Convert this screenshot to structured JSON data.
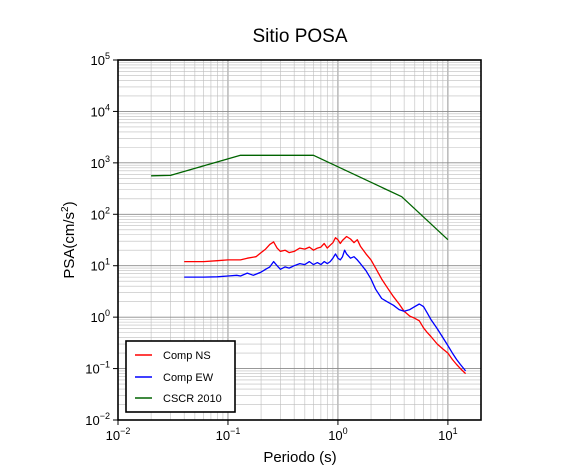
{
  "chart_data": {
    "type": "line",
    "title": "Sitio POSA",
    "xlabel": "Periodo (s)",
    "ylabel": "PSA(cm/s2)",
    "ylabel_parts": {
      "base": "PSA(cm/s",
      "sup": "2",
      "close": ")"
    },
    "xscale": "log",
    "yscale": "log",
    "xlim": [
      0.01,
      20
    ],
    "ylim": [
      0.01,
      100000
    ],
    "x_ticks": [
      {
        "value": 0.01,
        "base": "10",
        "exp": "−2"
      },
      {
        "value": 0.1,
        "base": "10",
        "exp": "−1"
      },
      {
        "value": 1,
        "base": "10",
        "exp": "0"
      },
      {
        "value": 10,
        "base": "10",
        "exp": "1"
      }
    ],
    "y_ticks": [
      {
        "value": 0.01,
        "base": "10",
        "exp": "−2"
      },
      {
        "value": 0.1,
        "base": "10",
        "exp": "−1"
      },
      {
        "value": 1,
        "base": "10",
        "exp": "0"
      },
      {
        "value": 10,
        "base": "10",
        "exp": "1"
      },
      {
        "value": 100,
        "base": "10",
        "exp": "2"
      },
      {
        "value": 1000,
        "base": "10",
        "exp": "3"
      },
      {
        "value": 10000,
        "base": "10",
        "exp": "4"
      },
      {
        "value": 100000,
        "base": "10",
        "exp": "5"
      }
    ],
    "grid": true,
    "legend_position": "bottom-left",
    "series": [
      {
        "name": "Comp NS",
        "color": "#ff0000",
        "points": [
          [
            0.04,
            12
          ],
          [
            0.06,
            12
          ],
          [
            0.08,
            12.5
          ],
          [
            0.1,
            13
          ],
          [
            0.13,
            13
          ],
          [
            0.15,
            14
          ],
          [
            0.18,
            15
          ],
          [
            0.2,
            18
          ],
          [
            0.22,
            21
          ],
          [
            0.24,
            26
          ],
          [
            0.26,
            29
          ],
          [
            0.28,
            22
          ],
          [
            0.3,
            19
          ],
          [
            0.33,
            20
          ],
          [
            0.36,
            18
          ],
          [
            0.4,
            19
          ],
          [
            0.45,
            22
          ],
          [
            0.5,
            21
          ],
          [
            0.55,
            23
          ],
          [
            0.6,
            20
          ],
          [
            0.65,
            22
          ],
          [
            0.7,
            23
          ],
          [
            0.75,
            27
          ],
          [
            0.8,
            22
          ],
          [
            0.85,
            25
          ],
          [
            0.9,
            28
          ],
          [
            0.95,
            35
          ],
          [
            1.0,
            32
          ],
          [
            1.05,
            27
          ],
          [
            1.1,
            31
          ],
          [
            1.2,
            37
          ],
          [
            1.3,
            33
          ],
          [
            1.4,
            28
          ],
          [
            1.5,
            32
          ],
          [
            1.6,
            24
          ],
          [
            1.8,
            17
          ],
          [
            2.0,
            13
          ],
          [
            2.2,
            9
          ],
          [
            2.5,
            5.5
          ],
          [
            2.8,
            3.8
          ],
          [
            3.2,
            2.5
          ],
          [
            3.6,
            1.8
          ],
          [
            4.0,
            1.3
          ],
          [
            4.5,
            1.05
          ],
          [
            5.0,
            0.95
          ],
          [
            5.5,
            0.85
          ],
          [
            6.0,
            0.62
          ],
          [
            6.5,
            0.5
          ],
          [
            7.0,
            0.42
          ],
          [
            8.0,
            0.3
          ],
          [
            9.0,
            0.24
          ],
          [
            10,
            0.2
          ],
          [
            11,
            0.15
          ],
          [
            12,
            0.12
          ],
          [
            13,
            0.1
          ],
          [
            14.5,
            0.08
          ]
        ]
      },
      {
        "name": "Comp EW",
        "color": "#0000ff",
        "points": [
          [
            0.04,
            6
          ],
          [
            0.06,
            6
          ],
          [
            0.08,
            6.1
          ],
          [
            0.1,
            6.3
          ],
          [
            0.12,
            6.5
          ],
          [
            0.13,
            6.3
          ],
          [
            0.15,
            7.2
          ],
          [
            0.17,
            6.5
          ],
          [
            0.2,
            7.5
          ],
          [
            0.22,
            8.5
          ],
          [
            0.24,
            9.5
          ],
          [
            0.26,
            12
          ],
          [
            0.28,
            10
          ],
          [
            0.3,
            8.5
          ],
          [
            0.33,
            9.5
          ],
          [
            0.36,
            9
          ],
          [
            0.4,
            10
          ],
          [
            0.45,
            11
          ],
          [
            0.5,
            10.5
          ],
          [
            0.55,
            12
          ],
          [
            0.6,
            10.5
          ],
          [
            0.65,
            11.5
          ],
          [
            0.7,
            10.5
          ],
          [
            0.75,
            12
          ],
          [
            0.8,
            11
          ],
          [
            0.85,
            12
          ],
          [
            0.9,
            14
          ],
          [
            0.95,
            17
          ],
          [
            1.0,
            14
          ],
          [
            1.05,
            13
          ],
          [
            1.1,
            15
          ],
          [
            1.15,
            20
          ],
          [
            1.2,
            17
          ],
          [
            1.3,
            14
          ],
          [
            1.4,
            15
          ],
          [
            1.5,
            13
          ],
          [
            1.6,
            11
          ],
          [
            1.8,
            8
          ],
          [
            2.0,
            5.5
          ],
          [
            2.2,
            3.5
          ],
          [
            2.5,
            2.3
          ],
          [
            2.8,
            2.0
          ],
          [
            3.2,
            1.7
          ],
          [
            3.6,
            1.4
          ],
          [
            4.0,
            1.3
          ],
          [
            4.5,
            1.4
          ],
          [
            5.0,
            1.6
          ],
          [
            5.5,
            1.8
          ],
          [
            6.0,
            1.6
          ],
          [
            6.5,
            1.2
          ],
          [
            7.0,
            0.9
          ],
          [
            8.0,
            0.6
          ],
          [
            9.0,
            0.4
          ],
          [
            10,
            0.28
          ],
          [
            11,
            0.2
          ],
          [
            12,
            0.15
          ],
          [
            13,
            0.12
          ],
          [
            14.5,
            0.09
          ]
        ]
      },
      {
        "name": "CSCR 2010",
        "color": "#006400",
        "points": [
          [
            0.02,
            560
          ],
          [
            0.03,
            570
          ],
          [
            0.13,
            1400
          ],
          [
            0.6,
            1400
          ],
          [
            3.8,
            220
          ],
          [
            10,
            32
          ]
        ]
      }
    ]
  }
}
